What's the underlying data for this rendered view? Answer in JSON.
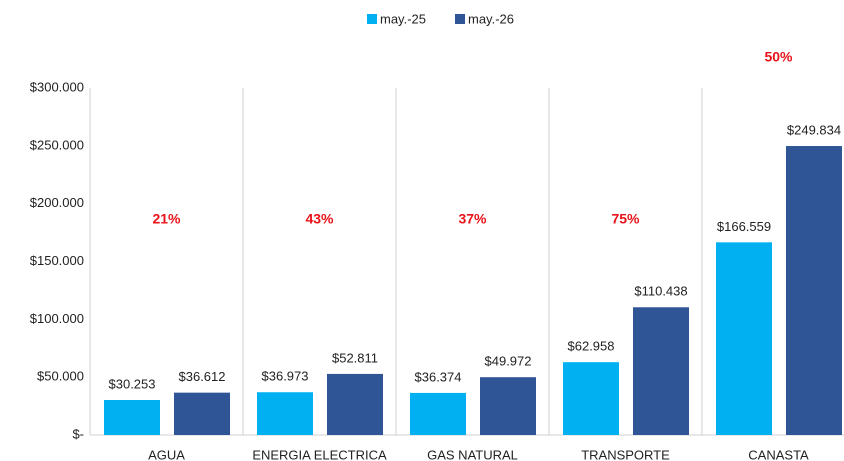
{
  "chart_data": {
    "type": "bar",
    "categories": [
      "AGUA",
      "ENERGIA ELECTRICA",
      "GAS NATURAL",
      "TRANSPORTE",
      "CANASTA"
    ],
    "series": [
      {
        "name": "may.-25",
        "color": "#00b0f0",
        "values": [
          30253,
          36973,
          36374,
          62958,
          166559
        ],
        "value_labels": [
          "$30.253",
          "$36.973",
          "$36.374",
          "$62.958",
          "$166.559"
        ]
      },
      {
        "name": "may.-26",
        "color": "#2f5597",
        "values": [
          36612,
          52811,
          49972,
          110438,
          249834
        ],
        "value_labels": [
          "$36.612",
          "$52.811",
          "$49.972",
          "$110.438",
          "$249.834"
        ]
      }
    ],
    "annotations": [
      "21%",
      "43%",
      "37%",
      "75%",
      "50%"
    ],
    "ylim": [
      0,
      300000
    ],
    "yticks": [
      {
        "value": 0,
        "label": "$-"
      },
      {
        "value": 50000,
        "label": "$50.000"
      },
      {
        "value": 100000,
        "label": "$100.000"
      },
      {
        "value": 150000,
        "label": "$150.000"
      },
      {
        "value": 200000,
        "label": "$200.000"
      },
      {
        "value": 250000,
        "label": "$250.000"
      },
      {
        "value": 300000,
        "label": "$300.000"
      }
    ],
    "legend": "top",
    "grid": false
  }
}
